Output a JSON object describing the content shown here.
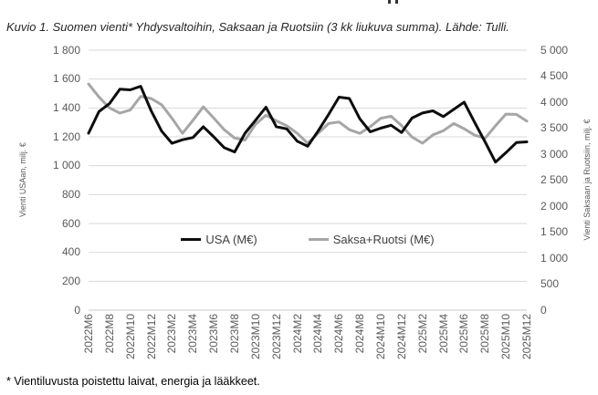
{
  "page": {
    "title": "Kuvio 1. Suomen vienti* Yhdysvaltoihin, Saksaan ja Ruotsiin (3 kk liukuva summa). Lähde: Tulli.",
    "footnote": "* Vientiluvusta poistettu laivat, energia ja lääkkeet."
  },
  "chart_data": {
    "type": "line",
    "title": "Kuvio 1. Suomen vienti* Yhdysvaltoihin, Saksaan ja Ruotsiin (3 kk liukuva summa). Lähde: Tulli.",
    "categories": [
      "2022M6",
      "2022M7",
      "2022M8",
      "2022M9",
      "2022M10",
      "2022M11",
      "2022M12",
      "2023M1",
      "2023M2",
      "2023M3",
      "2023M4",
      "2023M5",
      "2023M6",
      "2023M7",
      "2023M8",
      "2023M9",
      "2023M10",
      "2023M11",
      "2023M12",
      "2024M1",
      "2024M2",
      "2024M3",
      "2024M4",
      "2024M5",
      "2024M6",
      "2024M7",
      "2024M8",
      "2024M9",
      "2024M10",
      "2024M11",
      "2024M12",
      "2025M1",
      "2025M2",
      "2025M3",
      "2025M4",
      "2025M5",
      "2025M6",
      "2025M7",
      "2025M8",
      "2025M9",
      "2025M10",
      "2025M11",
      "2025M12"
    ],
    "x_tick_every": 2,
    "series": [
      {
        "name": "USA (M€)",
        "axis": "left",
        "color": "#0d0d0d",
        "values": [
          1225,
          1375,
          1430,
          1530,
          1525,
          1550,
          1380,
          1240,
          1155,
          1180,
          1195,
          1270,
          1200,
          1125,
          1095,
          1225,
          1315,
          1405,
          1270,
          1255,
          1170,
          1135,
          1240,
          1355,
          1475,
          1465,
          1325,
          1235,
          1260,
          1280,
          1230,
          1330,
          1365,
          1380,
          1340,
          1390,
          1440,
          1300,
          1165,
          1025,
          1090,
          1160,
          1165
        ]
      },
      {
        "name": "Saksa+Ruotsi (M€)",
        "axis": "right",
        "color": "#a6a6a6",
        "values": [
          4350,
          4100,
          3890,
          3790,
          3850,
          4110,
          4070,
          3950,
          3690,
          3400,
          3650,
          3910,
          3695,
          3470,
          3310,
          3270,
          3575,
          3750,
          3640,
          3545,
          3400,
          3210,
          3400,
          3590,
          3620,
          3470,
          3400,
          3530,
          3690,
          3730,
          3550,
          3330,
          3210,
          3370,
          3450,
          3590,
          3490,
          3365,
          3305,
          3545,
          3770,
          3765,
          3635
        ]
      }
    ],
    "left_axis": {
      "title": "Vienti USAan, milj. €",
      "min": 0,
      "max": 1800,
      "step": 200
    },
    "right_axis": {
      "title": "Vienti Saksaan ja Ruotsiin, milj. €",
      "min": 0,
      "max": 5000,
      "step": 500
    },
    "legend_position": "center-middle",
    "grid": true,
    "grid_color": "#d9d9d9",
    "axis_line_color": "#c9c9c9"
  }
}
